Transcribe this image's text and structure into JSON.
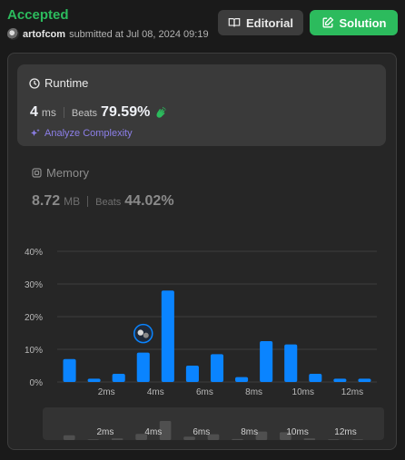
{
  "header": {
    "status": "Accepted",
    "username": "artofcom",
    "submitted_text": "submitted at Jul 08, 2024 09:19",
    "editorial_label": "Editorial",
    "solution_label": "Solution"
  },
  "runtime": {
    "title": "Runtime",
    "value": "4",
    "unit": "ms",
    "beats_label": "Beats",
    "beats_value": "79.59%",
    "analyze_label": "Analyze Complexity"
  },
  "memory": {
    "title": "Memory",
    "value": "8.72",
    "unit": "MB",
    "beats_label": "Beats",
    "beats_value": "44.02%"
  },
  "colors": {
    "accent_green": "#2cbb5d",
    "bar_blue": "#0a84ff",
    "analyze_purple": "#8c7fe8"
  },
  "chart_data": {
    "type": "bar",
    "ylim": [
      0,
      40
    ],
    "yticks": [
      "0%",
      "10%",
      "20%",
      "30%",
      "40%"
    ],
    "ytick_values": [
      0,
      10,
      20,
      30,
      40
    ],
    "x_tick_labels": [
      "2ms",
      "4ms",
      "6ms",
      "8ms",
      "10ms",
      "12ms"
    ],
    "x_tick_positions": [
      2,
      4,
      6,
      8,
      10,
      12
    ],
    "x": [
      0.5,
      1.5,
      2.5,
      3.5,
      4.5,
      5.5,
      6.5,
      7.5,
      8.5,
      9.5,
      10.5,
      11.5,
      12.5
    ],
    "values": [
      7,
      1,
      2.5,
      9,
      28,
      5,
      8.5,
      1.5,
      12.5,
      11.5,
      2.5,
      1,
      1
    ],
    "highlight_x": 3.5,
    "grid": true
  }
}
